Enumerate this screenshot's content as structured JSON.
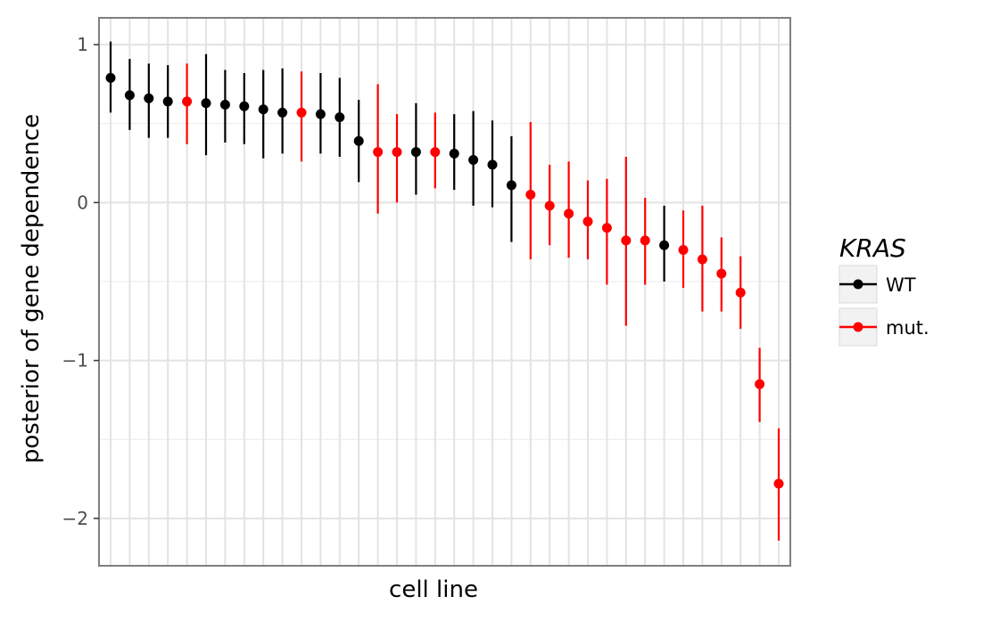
{
  "chart_data": {
    "type": "scatter",
    "title": "",
    "xlabel": "cell line",
    "ylabel": "posterior of gene dependence",
    "ylim": [
      -2.3,
      1.17
    ],
    "yticks": [
      1,
      0,
      -1,
      -2
    ],
    "ytick_labels": [
      "1",
      "0",
      "−1",
      "−2"
    ],
    "x_tick_labels_shown": false,
    "grid": true,
    "legend": {
      "title": "KRAS",
      "placement": "right",
      "entries": [
        {
          "label": "WT",
          "color": "#000000"
        },
        {
          "label": "mut.",
          "color": "#ff0000"
        }
      ]
    },
    "points": [
      {
        "y": 0.79,
        "lo": 0.57,
        "hi": 1.02,
        "group": "WT"
      },
      {
        "y": 0.68,
        "lo": 0.46,
        "hi": 0.91,
        "group": "WT"
      },
      {
        "y": 0.66,
        "lo": 0.41,
        "hi": 0.88,
        "group": "WT"
      },
      {
        "y": 0.64,
        "lo": 0.41,
        "hi": 0.87,
        "group": "WT"
      },
      {
        "y": 0.64,
        "lo": 0.37,
        "hi": 0.88,
        "group": "mut."
      },
      {
        "y": 0.63,
        "lo": 0.3,
        "hi": 0.94,
        "group": "WT"
      },
      {
        "y": 0.62,
        "lo": 0.38,
        "hi": 0.84,
        "group": "WT"
      },
      {
        "y": 0.61,
        "lo": 0.37,
        "hi": 0.82,
        "group": "WT"
      },
      {
        "y": 0.59,
        "lo": 0.28,
        "hi": 0.84,
        "group": "WT"
      },
      {
        "y": 0.57,
        "lo": 0.31,
        "hi": 0.85,
        "group": "WT"
      },
      {
        "y": 0.57,
        "lo": 0.26,
        "hi": 0.83,
        "group": "mut."
      },
      {
        "y": 0.56,
        "lo": 0.31,
        "hi": 0.82,
        "group": "WT"
      },
      {
        "y": 0.54,
        "lo": 0.29,
        "hi": 0.79,
        "group": "WT"
      },
      {
        "y": 0.39,
        "lo": 0.13,
        "hi": 0.65,
        "group": "WT"
      },
      {
        "y": 0.32,
        "lo": -0.07,
        "hi": 0.75,
        "group": "mut."
      },
      {
        "y": 0.32,
        "lo": 0.0,
        "hi": 0.56,
        "group": "mut."
      },
      {
        "y": 0.32,
        "lo": 0.05,
        "hi": 0.63,
        "group": "WT"
      },
      {
        "y": 0.32,
        "lo": 0.09,
        "hi": 0.57,
        "group": "mut."
      },
      {
        "y": 0.31,
        "lo": 0.08,
        "hi": 0.56,
        "group": "WT"
      },
      {
        "y": 0.27,
        "lo": -0.02,
        "hi": 0.58,
        "group": "WT"
      },
      {
        "y": 0.24,
        "lo": -0.03,
        "hi": 0.52,
        "group": "WT"
      },
      {
        "y": 0.11,
        "lo": -0.25,
        "hi": 0.42,
        "group": "WT"
      },
      {
        "y": 0.05,
        "lo": -0.36,
        "hi": 0.51,
        "group": "mut."
      },
      {
        "y": -0.02,
        "lo": -0.27,
        "hi": 0.24,
        "group": "mut."
      },
      {
        "y": -0.07,
        "lo": -0.35,
        "hi": 0.26,
        "group": "mut."
      },
      {
        "y": -0.12,
        "lo": -0.36,
        "hi": 0.14,
        "group": "mut."
      },
      {
        "y": -0.16,
        "lo": -0.52,
        "hi": 0.15,
        "group": "mut."
      },
      {
        "y": -0.24,
        "lo": -0.78,
        "hi": 0.29,
        "group": "mut."
      },
      {
        "y": -0.24,
        "lo": -0.52,
        "hi": 0.03,
        "group": "mut."
      },
      {
        "y": -0.27,
        "lo": -0.5,
        "hi": -0.02,
        "group": "WT"
      },
      {
        "y": -0.3,
        "lo": -0.54,
        "hi": -0.05,
        "group": "mut."
      },
      {
        "y": -0.36,
        "lo": -0.69,
        "hi": -0.02,
        "group": "mut."
      },
      {
        "y": -0.45,
        "lo": -0.69,
        "hi": -0.22,
        "group": "mut."
      },
      {
        "y": -0.57,
        "lo": -0.8,
        "hi": -0.34,
        "group": "mut."
      },
      {
        "y": -1.15,
        "lo": -1.39,
        "hi": -0.92,
        "group": "mut."
      },
      {
        "y": -1.78,
        "lo": -2.14,
        "hi": -1.43,
        "group": "mut."
      }
    ]
  }
}
